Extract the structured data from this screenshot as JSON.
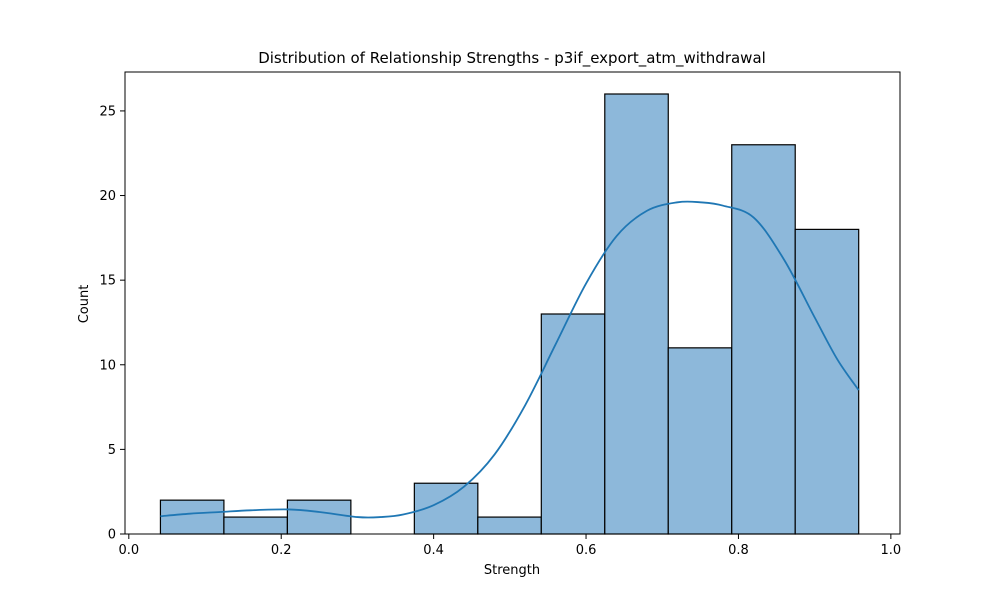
{
  "chart_data": {
    "type": "bar",
    "title": "Distribution of Relationship Strengths - p3if_export_atm_withdrawal",
    "xlabel": "Strength",
    "ylabel": "Count",
    "xlim": [
      -0.005,
      1.012
    ],
    "ylim": [
      0,
      27.3
    ],
    "xticks": [
      0.0,
      0.2,
      0.4,
      0.6,
      0.8,
      1.0
    ],
    "xtick_labels": [
      "0.0",
      "0.2",
      "0.4",
      "0.6",
      "0.8",
      "1.0"
    ],
    "yticks": [
      0,
      5,
      10,
      15,
      20,
      25
    ],
    "ytick_labels": [
      "0",
      "5",
      "10",
      "15",
      "20",
      "25"
    ],
    "grid": false,
    "bar_fill": "#8db8da",
    "bar_edge": "#000000",
    "kde_color": "#1f77b4",
    "bins": [
      {
        "x0": 0.0415,
        "x1": 0.1248,
        "count": 2
      },
      {
        "x0": 0.1248,
        "x1": 0.2081,
        "count": 1
      },
      {
        "x0": 0.2081,
        "x1": 0.2914,
        "count": 2
      },
      {
        "x0": 0.2914,
        "x1": 0.3747,
        "count": 0
      },
      {
        "x0": 0.3747,
        "x1": 0.458,
        "count": 3
      },
      {
        "x0": 0.458,
        "x1": 0.5413,
        "count": 1
      },
      {
        "x0": 0.5413,
        "x1": 0.6246,
        "count": 13
      },
      {
        "x0": 0.6246,
        "x1": 0.7079,
        "count": 26
      },
      {
        "x0": 0.7079,
        "x1": 0.7912,
        "count": 11
      },
      {
        "x0": 0.7912,
        "x1": 0.8745,
        "count": 23
      },
      {
        "x0": 0.8745,
        "x1": 0.9578,
        "count": 18
      }
    ],
    "kde": {
      "x": [
        0.0415,
        0.08,
        0.12,
        0.16,
        0.21,
        0.25,
        0.3,
        0.33,
        0.36,
        0.4,
        0.44,
        0.48,
        0.52,
        0.56,
        0.6,
        0.64,
        0.68,
        0.72,
        0.75,
        0.78,
        0.82,
        0.86,
        0.9,
        0.93,
        0.9578
      ],
      "y": [
        1.05,
        1.2,
        1.3,
        1.4,
        1.45,
        1.3,
        1.0,
        1.0,
        1.15,
        1.7,
        2.8,
        4.7,
        7.6,
        11.2,
        14.8,
        17.6,
        19.1,
        19.6,
        19.6,
        19.4,
        18.7,
        16.2,
        12.8,
        10.3,
        8.5
      ]
    }
  }
}
